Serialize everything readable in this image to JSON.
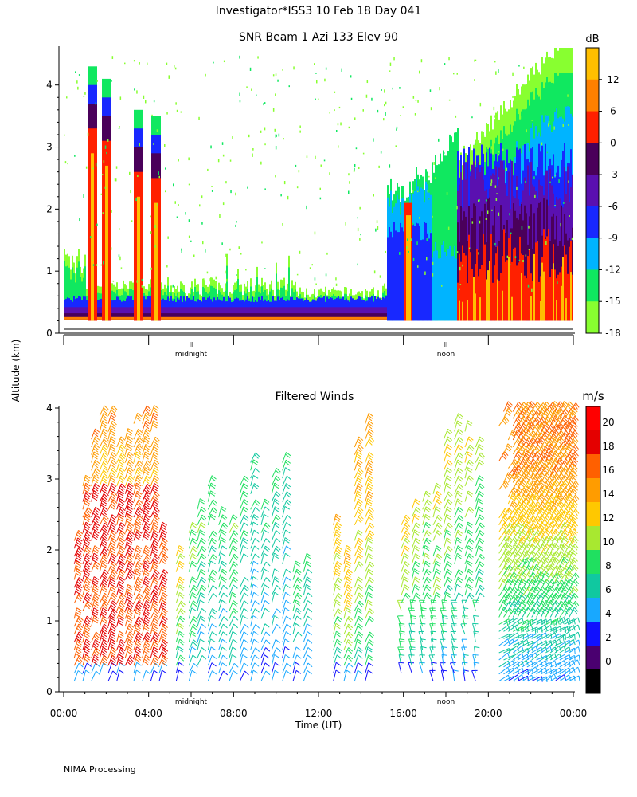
{
  "header": {
    "title": "Investigator*ISS3  10 Feb 18 Day 041",
    "footer": "NIMA Processing"
  },
  "chart_data": [
    {
      "type": "heatmap",
      "title": "SNR Beam 1 Azi 133 Elev 90",
      "ylabel": "Altitude (km)",
      "ylim": [
        0,
        4.6
      ],
      "y_ticks": [
        "0",
        "1",
        "2",
        "3",
        "4"
      ],
      "x_marks": [
        "midnight",
        "noon"
      ],
      "x_hours_of_marks": [
        6,
        18
      ],
      "colorbar": {
        "unit": "dB",
        "tick_labels": [
          "12",
          "6",
          "0",
          "-3",
          "-6",
          "-9",
          "-12",
          "-15",
          "-18"
        ],
        "colors": [
          "#ffbf00",
          "#ff8000",
          "#ff2000",
          "#4a005a",
          "#5a10b0",
          "#1828ff",
          "#00b4ff",
          "#10e860",
          "#88ff30"
        ]
      },
      "features": [
        {
          "name": "surface return layer",
          "x_hours": [
            0,
            24
          ],
          "top_km": 0.8,
          "dB": "-12 to 6"
        },
        {
          "name": "precipitation columns",
          "x_hours": [
            1.2,
            4.4
          ],
          "top_km": 4.3,
          "dB": "0 to 12"
        },
        {
          "name": "melting layer",
          "x_hours": [
            15.2,
            17.5
          ],
          "top_km": 2.5,
          "dB": "-15 to 6"
        },
        {
          "name": "deep echo",
          "x_hours": [
            18.5,
            24
          ],
          "top_km": 4.6,
          "dB": "-6 to 12"
        }
      ]
    },
    {
      "type": "wind-barbs",
      "title": "Filtered Winds",
      "xlabel": "Time (UT)",
      "ylabel": "Altitude (km)",
      "ylim": [
        0,
        4
      ],
      "y_ticks": [
        "0",
        "1",
        "2",
        "3",
        "4"
      ],
      "x_ticks": [
        "00:00",
        "04:00",
        "08:00",
        "12:00",
        "16:00",
        "20:00",
        "00:00"
      ],
      "x_marks": [
        "midnight",
        "noon"
      ],
      "colorbar": {
        "unit": "m/s",
        "tick_labels": [
          "20",
          "18",
          "16",
          "14",
          "12",
          "10",
          "8",
          "6",
          "4",
          "2",
          "0"
        ],
        "colors": [
          "#ff0000",
          "#e40000",
          "#ff6000",
          "#ff9c00",
          "#ffc800",
          "#a8e830",
          "#20e060",
          "#10c8a0",
          "#18a8ff",
          "#1010ff",
          "#4a0070",
          "#000000"
        ]
      },
      "profiles_hours": [
        0.5,
        0.9,
        1.3,
        1.7,
        2.1,
        2.5,
        2.9,
        3.3,
        3.7,
        4.1,
        4.5,
        5.3,
        5.9,
        6.3,
        6.8,
        7.3,
        7.8,
        8.3,
        8.8,
        9.3,
        9.8,
        10.3,
        10.8,
        11.3,
        12.7,
        13.2,
        13.7,
        14.2,
        15.9,
        16.4,
        16.9,
        17.4,
        17.9,
        18.4,
        18.9,
        19.4
      ],
      "profile_top_km": [
        2.2,
        3.0,
        3.6,
        3.9,
        3.9,
        3.5,
        3.6,
        3.9,
        3.9,
        3.9,
        2.3,
        2.0,
        2.3,
        2.6,
        3.0,
        2.5,
        2.4,
        2.9,
        3.3,
        2.6,
        3.1,
        3.3,
        1.8,
        1.9,
        2.4,
        2.0,
        3.5,
        3.8,
        2.4,
        2.6,
        2.7,
        2.8,
        3.6,
        3.8,
        3.7,
        3.5
      ],
      "profile_speed_top_ms": [
        14,
        15,
        16,
        15,
        16,
        14,
        15,
        16,
        16,
        16,
        16,
        13,
        11,
        10,
        10,
        9,
        10,
        9,
        8,
        8,
        9,
        8,
        9,
        8,
        14,
        15,
        15,
        15,
        13,
        12,
        11,
        12,
        12,
        12,
        12,
        11
      ],
      "dense_block": {
        "x_hours": [
          20.5,
          24
        ],
        "top_km": 4.0,
        "speed_low_ms": 4,
        "speed_high_ms": 16
      }
    }
  ]
}
